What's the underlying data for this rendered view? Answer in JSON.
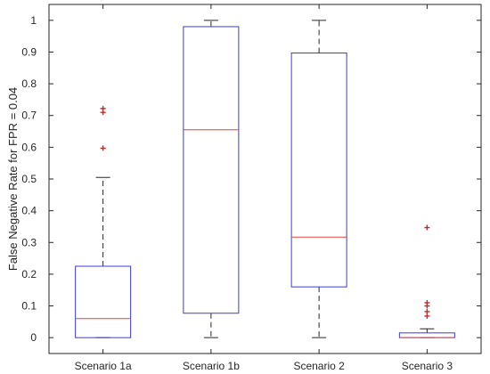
{
  "chart_data": {
    "type": "box",
    "title": "",
    "xlabel": "",
    "ylabel": "False Negative Rate for FPR = 0.04",
    "ylim": [
      -0.05,
      1.05
    ],
    "yticks": [
      0,
      0.1,
      0.2,
      0.3,
      0.4,
      0.5,
      0.6,
      0.7,
      0.8,
      0.9,
      1
    ],
    "ytick_labels": [
      "0",
      "0.1",
      "0.2",
      "0.3",
      "0.4",
      "0.5",
      "0.6",
      "0.7",
      "0.8",
      "0.9",
      "1"
    ],
    "categories": [
      "Scenario 1a",
      "Scenario 1b",
      "Scenario 2",
      "Scenario 3"
    ],
    "boxes": [
      {
        "whisker_low": 0.0,
        "q1": 0.0,
        "median": 0.06,
        "q3": 0.225,
        "whisker_high": 0.505,
        "outliers": [
          0.597,
          0.71,
          0.722
        ]
      },
      {
        "whisker_low": 0.0,
        "q1": 0.077,
        "median": 0.655,
        "q3": 0.98,
        "whisker_high": 1.0,
        "outliers": []
      },
      {
        "whisker_low": 0.0,
        "q1": 0.16,
        "median": 0.317,
        "q3": 0.897,
        "whisker_high": 1.0,
        "outliers": []
      },
      {
        "whisker_low": 0.0,
        "q1": 0.0,
        "median": 0.0,
        "q3": 0.015,
        "whisker_high": 0.028,
        "outliers": [
          0.068,
          0.082,
          0.1,
          0.11,
          0.347
        ]
      }
    ],
    "colors": {
      "box": "#3b3bd9",
      "median": "#e8443a",
      "whisker": "#262626",
      "outlier": "#d62020",
      "axis": "#262626"
    },
    "grid": false,
    "legend": "none"
  }
}
